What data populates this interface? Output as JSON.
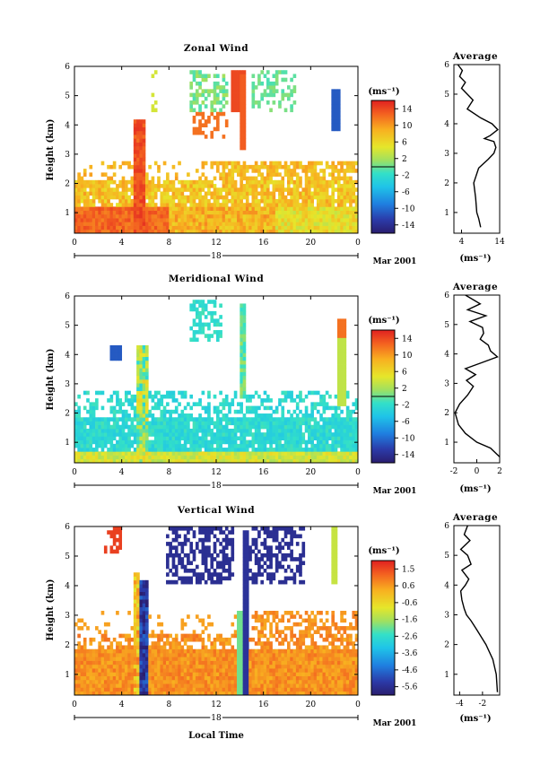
{
  "figure": {
    "bottom_xlabel": "Local Time",
    "date_label": "18",
    "month_label": "Mar 2001"
  },
  "panels": [
    {
      "id": "zonal",
      "title": "Zonal Wind",
      "ylabel": "Height (km)",
      "units": "(ms⁻¹)",
      "colorbar_ticks": [
        "14",
        "10",
        "6",
        "2",
        "-2",
        "-6",
        "-10",
        "-14"
      ],
      "colorbar_range": [
        -16,
        16
      ],
      "profile_title": "Average",
      "profile_xticks": [
        "4",
        "14"
      ],
      "profile_xlabel": "(ms⁻¹)"
    },
    {
      "id": "meridional",
      "title": "Meridional Wind",
      "ylabel": "Height (km)",
      "units": "(ms⁻¹)",
      "colorbar_ticks": [
        "14",
        "10",
        "6",
        "2",
        "-2",
        "-6",
        "-10",
        "-14"
      ],
      "colorbar_range": [
        -16,
        16
      ],
      "profile_title": "Average",
      "profile_xticks": [
        "-2",
        "0",
        "2"
      ],
      "profile_xlabel": "(ms⁻¹)"
    },
    {
      "id": "vertical",
      "title": "Vertical Wind",
      "ylabel": "Height (km)",
      "units": "(ms⁻¹)",
      "colorbar_ticks": [
        "1.5",
        "0.6",
        "-0.6",
        "-1.6",
        "-2.6",
        "-3.6",
        "-4.6",
        "-5.6"
      ],
      "colorbar_range": [
        -6.1,
        2.0
      ],
      "profile_title": "Average",
      "profile_xticks": [
        "-4",
        "-2"
      ],
      "profile_xlabel": "(ms⁻¹)"
    }
  ],
  "chart_data": [
    {
      "type": "heatmap",
      "title": "Zonal Wind",
      "ylabel": "Height (km)",
      "x_ticks": [
        "0",
        "4",
        "8",
        "12",
        "16",
        "20",
        "0"
      ],
      "y_ticks": [
        "1",
        "2",
        "3",
        "4",
        "5",
        "6"
      ],
      "xlim": [
        0,
        24
      ],
      "ylim": [
        0.3,
        6
      ],
      "colorbar": {
        "label": "(ms⁻¹)",
        "ticks": [
          14,
          10,
          6,
          2,
          -2,
          -6,
          -10,
          -14
        ],
        "range": [
          -16,
          16
        ]
      },
      "note": "approximate time-height wind field; warm colors low (0.3-2 km), scattered returns above",
      "profile": {
        "title": "Average",
        "xticks": [
          4,
          14
        ],
        "xlim": [
          2,
          14
        ],
        "height": [
          0.5,
          0.8,
          1.0,
          1.5,
          2.0,
          2.5,
          2.8,
          3.0,
          3.2,
          3.4,
          3.5,
          3.6,
          3.8,
          4.0,
          4.2,
          4.5,
          4.8,
          5.0,
          5.2,
          5.4,
          5.6,
          5.8,
          6.0
        ],
        "value": [
          9,
          8.5,
          8,
          7.7,
          7.2,
          8.5,
          11,
          12.5,
          13,
          12.5,
          10,
          11.5,
          13.5,
          12,
          9,
          5.5,
          7,
          5.5,
          4,
          5,
          3.5,
          4.2,
          3
        ]
      }
    },
    {
      "type": "heatmap",
      "title": "Meridional Wind",
      "ylabel": "Height (km)",
      "x_ticks": [
        "0",
        "4",
        "8",
        "12",
        "16",
        "20",
        "0"
      ],
      "y_ticks": [
        "1",
        "2",
        "3",
        "4",
        "5",
        "6"
      ],
      "xlim": [
        0,
        24
      ],
      "ylim": [
        0.3,
        6
      ],
      "colorbar": {
        "label": "(ms⁻¹)",
        "ticks": [
          14,
          10,
          6,
          2,
          -2,
          -6,
          -10,
          -14
        ],
        "range": [
          -16,
          16
        ]
      },
      "note": "mostly weak southward (cyan) winds 0.5-2.5 km with contour outlines",
      "profile": {
        "title": "Average",
        "xticks": [
          -2,
          0,
          2
        ],
        "xlim": [
          -2,
          2
        ],
        "height": [
          0.5,
          0.8,
          1.0,
          1.3,
          1.6,
          2.0,
          2.3,
          2.6,
          2.9,
          3.1,
          3.3,
          3.5,
          3.7,
          3.9,
          4.1,
          4.3,
          4.5,
          4.7,
          4.9,
          5.1,
          5.3,
          5.5,
          5.7,
          6.0
        ],
        "value": [
          2,
          1.2,
          0,
          -1,
          -1.6,
          -1.9,
          -1.5,
          -0.8,
          -0.3,
          -0.9,
          -0.1,
          -1.0,
          0.4,
          1.8,
          1.2,
          1.0,
          0.3,
          0.6,
          0.5,
          -0.6,
          0.8,
          -0.8,
          0.3,
          -1.0
        ]
      }
    },
    {
      "type": "heatmap",
      "title": "Vertical Wind",
      "ylabel": "Height (km)",
      "x_ticks": [
        "0",
        "4",
        "8",
        "12",
        "16",
        "20",
        "0"
      ],
      "y_ticks": [
        "1",
        "2",
        "3",
        "4",
        "5",
        "6"
      ],
      "xlim": [
        0,
        24
      ],
      "ylim": [
        0.3,
        6
      ],
      "colorbar": {
        "label": "(ms⁻¹)",
        "ticks": [
          1.5,
          0.6,
          -0.6,
          -1.6,
          -2.6,
          -3.6,
          -4.6,
          -5.6
        ],
        "range": [
          -6.1,
          2.0
        ]
      },
      "note": "weak upward/near-zero (orange) below 2.5 km; strong downward (dark blue) 4-6 km aloft",
      "profile": {
        "title": "Average",
        "xticks": [
          -4,
          -2
        ],
        "xlim": [
          -4.5,
          -0.5
        ],
        "height": [
          0.4,
          1.0,
          1.5,
          2.0,
          2.5,
          2.8,
          3.0,
          3.2,
          3.5,
          3.8,
          4.0,
          4.2,
          4.5,
          4.7,
          5.0,
          5.2,
          5.5,
          5.7,
          6.0
        ],
        "value": [
          -0.7,
          -0.8,
          -1.1,
          -1.7,
          -2.5,
          -3.0,
          -3.4,
          -3.6,
          -3.8,
          -3.9,
          -3.5,
          -3.2,
          -3.8,
          -3.0,
          -3.3,
          -3.9,
          -3.1,
          -3.6,
          -3.3
        ]
      }
    }
  ]
}
